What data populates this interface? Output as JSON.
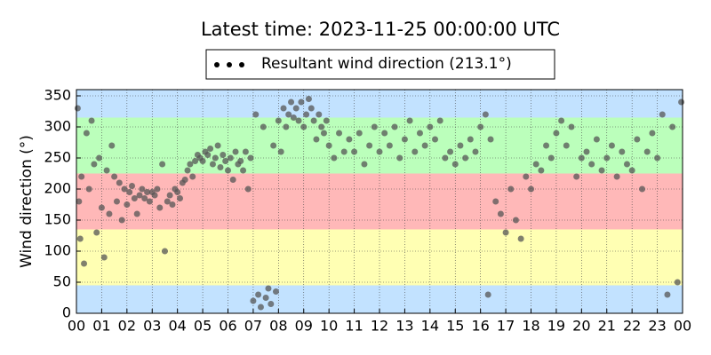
{
  "chart_data": {
    "type": "scatter",
    "title": "Latest time: 2023-11-25 00:00:00 UTC",
    "y_label": "Wind direction (°)",
    "series": [
      {
        "name": "Resultant wind direction (213.1°)",
        "color": "#555555",
        "x": [
          0.05,
          0.1,
          0.15,
          0.2,
          0.3,
          0.4,
          0.5,
          0.6,
          0.7,
          0.8,
          0.9,
          1.0,
          1.1,
          1.2,
          1.3,
          1.4,
          1.5,
          1.6,
          1.7,
          1.8,
          1.9,
          2.0,
          2.1,
          2.2,
          2.3,
          2.4,
          2.5,
          2.6,
          2.7,
          2.8,
          2.9,
          3.0,
          3.1,
          3.2,
          3.3,
          3.4,
          3.5,
          3.6,
          3.7,
          3.8,
          3.9,
          4.0,
          4.1,
          4.2,
          4.3,
          4.4,
          4.5,
          4.6,
          4.7,
          4.8,
          4.9,
          5.0,
          5.1,
          5.2,
          5.3,
          5.4,
          5.5,
          5.6,
          5.7,
          5.8,
          5.9,
          6.0,
          6.1,
          6.2,
          6.3,
          6.4,
          6.5,
          6.6,
          6.7,
          6.8,
          6.9,
          7.0,
          7.1,
          7.2,
          7.3,
          7.4,
          7.5,
          7.6,
          7.7,
          7.8,
          7.9,
          8.0,
          8.1,
          8.2,
          8.3,
          8.4,
          8.5,
          8.6,
          8.7,
          8.8,
          8.9,
          9.0,
          9.1,
          9.2,
          9.3,
          9.4,
          9.5,
          9.6,
          9.7,
          9.8,
          9.9,
          10.0,
          10.2,
          10.4,
          10.6,
          10.8,
          11.0,
          11.2,
          11.4,
          11.6,
          11.8,
          12.0,
          12.2,
          12.4,
          12.6,
          12.8,
          13.0,
          13.2,
          13.4,
          13.6,
          13.8,
          14.0,
          14.2,
          14.4,
          14.6,
          14.8,
          15.0,
          15.2,
          15.4,
          15.6,
          15.8,
          16.0,
          16.2,
          16.3,
          16.4,
          16.6,
          16.8,
          17.0,
          17.2,
          17.4,
          17.6,
          17.8,
          18.0,
          18.2,
          18.4,
          18.6,
          18.8,
          19.0,
          19.2,
          19.4,
          19.6,
          19.8,
          20.0,
          20.2,
          20.4,
          20.6,
          20.8,
          21.0,
          21.2,
          21.4,
          21.6,
          21.8,
          22.0,
          22.2,
          22.4,
          22.6,
          22.8,
          23.0,
          23.2,
          23.4,
          23.6,
          23.8,
          23.95
        ],
        "values": [
          330,
          180,
          120,
          220,
          80,
          290,
          200,
          310,
          240,
          130,
          250,
          170,
          90,
          230,
          160,
          270,
          220,
          180,
          210,
          150,
          200,
          175,
          195,
          205,
          185,
          160,
          190,
          200,
          185,
          195,
          180,
          195,
          190,
          200,
          170,
          240,
          100,
          180,
          190,
          175,
          200,
          195,
          185,
          210,
          215,
          230,
          240,
          220,
          245,
          255,
          250,
          245,
          260,
          255,
          265,
          240,
          250,
          270,
          235,
          255,
          245,
          230,
          250,
          215,
          260,
          240,
          245,
          230,
          260,
          200,
          250,
          20,
          320,
          30,
          10,
          300,
          25,
          40,
          15,
          270,
          35,
          310,
          260,
          330,
          300,
          320,
          340,
          315,
          330,
          310,
          340,
          300,
          320,
          345,
          330,
          310,
          280,
          320,
          300,
          290,
          310,
          270,
          250,
          290,
          260,
          280,
          260,
          290,
          240,
          270,
          300,
          260,
          290,
          270,
          300,
          250,
          280,
          310,
          260,
          290,
          270,
          300,
          280,
          310,
          250,
          260,
          240,
          270,
          250,
          280,
          260,
          300,
          320,
          30,
          280,
          180,
          160,
          130,
          200,
          150,
          120,
          220,
          200,
          240,
          230,
          270,
          250,
          290,
          310,
          270,
          300,
          220,
          250,
          260,
          240,
          280,
          230,
          250,
          270,
          220,
          260,
          240,
          230,
          280,
          200,
          260,
          290,
          250,
          320,
          30,
          300,
          50,
          340
        ]
      }
    ],
    "bands": [
      {
        "from": 0,
        "to": 45,
        "color": "#c2e2ff"
      },
      {
        "from": 45,
        "to": 135,
        "color": "#ffffb3"
      },
      {
        "from": 135,
        "to": 225,
        "color": "#ffb8b8"
      },
      {
        "from": 225,
        "to": 315,
        "color": "#bbffbb"
      },
      {
        "from": 315,
        "to": 360,
        "color": "#c2e2ff"
      }
    ],
    "xlim": [
      0,
      24
    ],
    "ylim": [
      0,
      360
    ],
    "xticks": [
      {
        "value": 0,
        "label": "00"
      },
      {
        "value": 1,
        "label": "01"
      },
      {
        "value": 2,
        "label": "02"
      },
      {
        "value": 3,
        "label": "03"
      },
      {
        "value": 4,
        "label": "04"
      },
      {
        "value": 5,
        "label": "05"
      },
      {
        "value": 6,
        "label": "06"
      },
      {
        "value": 7,
        "label": "07"
      },
      {
        "value": 8,
        "label": "08"
      },
      {
        "value": 9,
        "label": "09"
      },
      {
        "value": 10,
        "label": "10"
      },
      {
        "value": 11,
        "label": "11"
      },
      {
        "value": 12,
        "label": "12"
      },
      {
        "value": 13,
        "label": "13"
      },
      {
        "value": 14,
        "label": "14"
      },
      {
        "value": 15,
        "label": "15"
      },
      {
        "value": 16,
        "label": "16"
      },
      {
        "value": 17,
        "label": "17"
      },
      {
        "value": 18,
        "label": "18"
      },
      {
        "value": 19,
        "label": "19"
      },
      {
        "value": 20,
        "label": "20"
      },
      {
        "value": 21,
        "label": "21"
      },
      {
        "value": 22,
        "label": "22"
      },
      {
        "value": 23,
        "label": "23"
      },
      {
        "value": 24,
        "label": "00"
      }
    ],
    "yticks": [
      0,
      50,
      100,
      150,
      200,
      250,
      300,
      350
    ],
    "grid": true,
    "legend": "top"
  }
}
